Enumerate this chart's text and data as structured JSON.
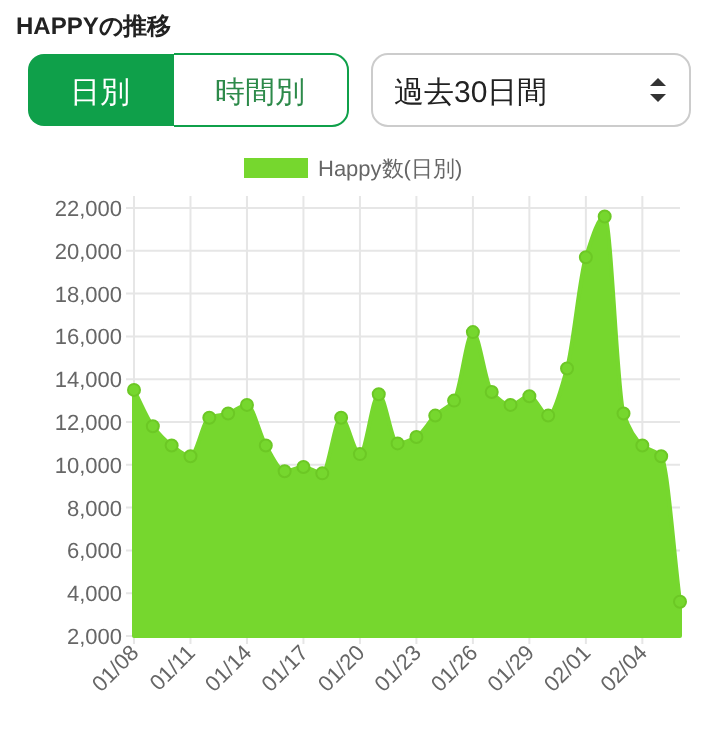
{
  "chart_data": {
    "type": "area",
    "title": "HAPPYの推移",
    "annotations": [
      "日別",
      "時間別",
      "過去30日間"
    ],
    "categories": [
      "01/08",
      null,
      null,
      "01/11",
      null,
      null,
      "01/14",
      null,
      null,
      "01/17",
      null,
      null,
      "01/20",
      null,
      null,
      "01/23",
      null,
      null,
      "01/26",
      null,
      null,
      "01/29",
      null,
      null,
      "02/01",
      null,
      null,
      "02/04",
      null,
      null
    ],
    "series": [
      {
        "name": "Happy数(日別)",
        "color": "#76d72e",
        "values": [
          13500,
          11800,
          10900,
          10400,
          12200,
          12400,
          12800,
          10900,
          9700,
          9900,
          9600,
          12200,
          10500,
          13300,
          11000,
          11300,
          12300,
          13000,
          16200,
          13400,
          12800,
          13200,
          12300,
          14500,
          19700,
          21600,
          12400,
          10900,
          10400,
          3600
        ]
      }
    ],
    "ylim": [
      2000,
      22000
    ],
    "yticks": [
      {
        "value": 2000,
        "label": "2,000"
      },
      {
        "value": 4000,
        "label": "4,000"
      },
      {
        "value": 6000,
        "label": "6,000"
      },
      {
        "value": 8000,
        "label": "8,000"
      },
      {
        "value": 10000,
        "label": "10,000"
      },
      {
        "value": 12000,
        "label": "12,000"
      },
      {
        "value": 14000,
        "label": "14,000"
      },
      {
        "value": 16000,
        "label": "16,000"
      },
      {
        "value": 18000,
        "label": "18,000"
      },
      {
        "value": 20000,
        "label": "20,000"
      },
      {
        "value": 22000,
        "label": "22,000"
      }
    ],
    "grid": true,
    "legend": "top",
    "marker": "circle"
  }
}
